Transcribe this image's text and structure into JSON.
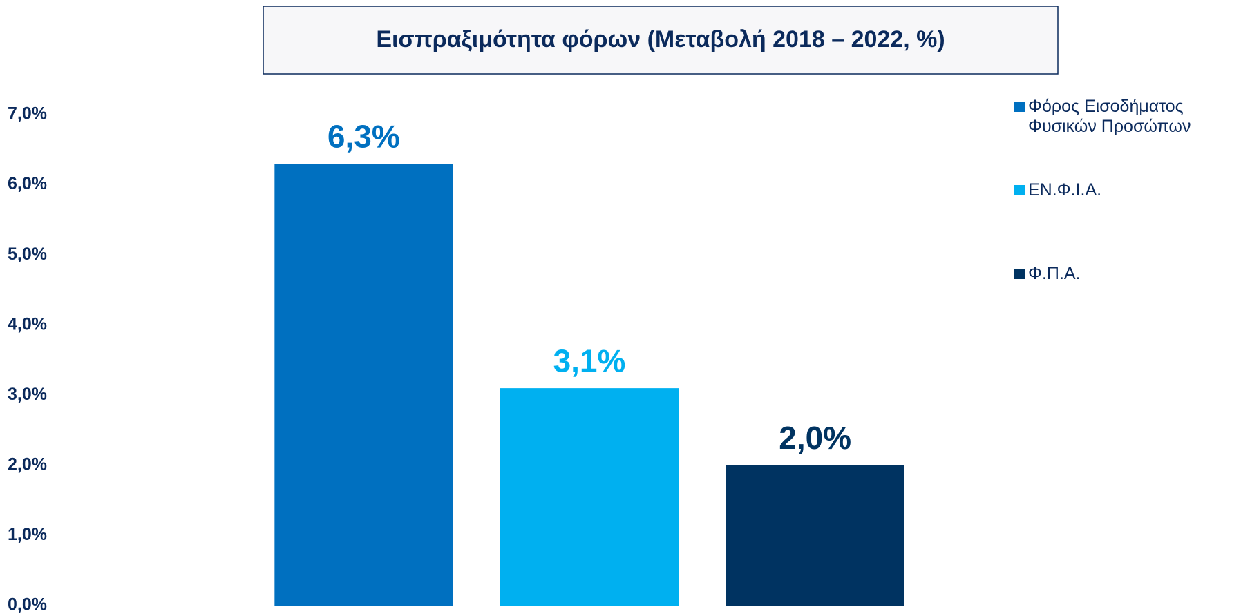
{
  "chart_data": {
    "type": "bar",
    "title": "Εισπραξιμότητα φόρων (Μεταβολή 2018 – 2022, %)",
    "series": [
      {
        "name": "Φόρος Εισοδήματος Φυσικών Προσώπων",
        "color": "#0070c0",
        "values": [
          6.3
        ],
        "value_labels": [
          "6,3%"
        ]
      },
      {
        "name": "ΕΝ.Φ.Ι.Α.",
        "color": "#00b0f0",
        "values": [
          3.1
        ],
        "value_labels": [
          "3,1%"
        ]
      },
      {
        "name": "Φ.Π.Α.",
        "color": "#003361",
        "values": [
          2.0
        ],
        "value_labels": [
          "2,0%"
        ]
      }
    ],
    "ylim": [
      0,
      7
    ],
    "yticks": [
      {
        "value": 0,
        "label": "0,0%"
      },
      {
        "value": 1,
        "label": "1,0%"
      },
      {
        "value": 2,
        "label": "2,0%"
      },
      {
        "value": 3,
        "label": "3,0%"
      },
      {
        "value": 4,
        "label": "4,0%"
      },
      {
        "value": 5,
        "label": "5,0%"
      },
      {
        "value": 6,
        "label": "6,0%"
      },
      {
        "value": 7,
        "label": "7,0%"
      }
    ],
    "grid": false,
    "legend": "right"
  }
}
